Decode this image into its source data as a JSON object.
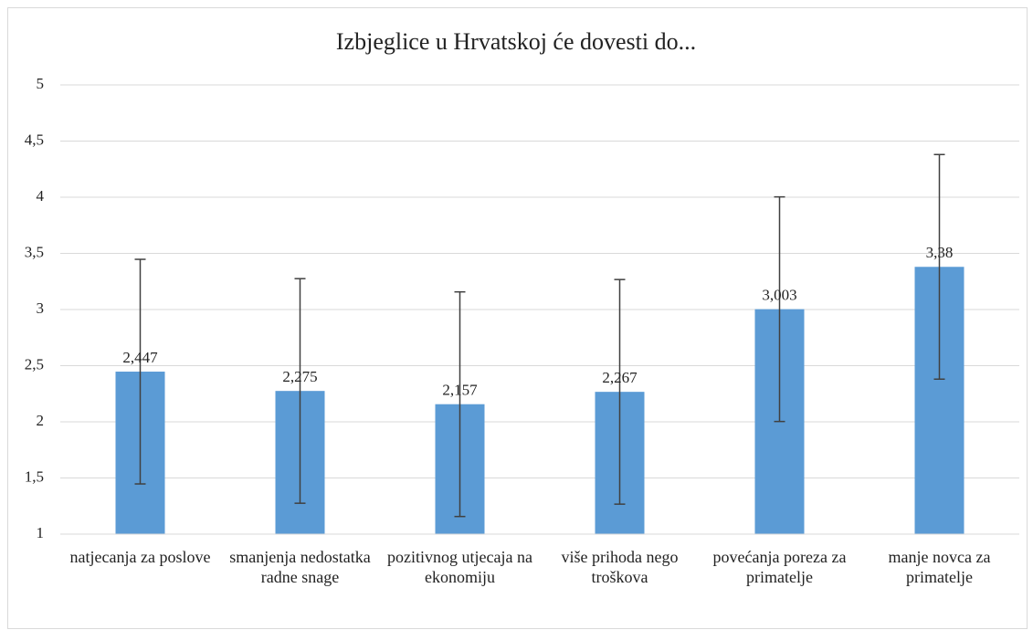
{
  "chart_data": {
    "type": "bar",
    "title": "Izbjeglice u Hrvatskoj će dovesti do...",
    "categories": [
      "natjecanja za poslove",
      "smanjenja nedostatka radne snage",
      "pozitivnog utjecaja na ekonomiju",
      "više prihoda nego troškova",
      "povećanja poreza za primatelje",
      "manje novca za primatelje"
    ],
    "values": [
      2.447,
      2.275,
      2.157,
      2.267,
      3.003,
      3.38
    ],
    "value_labels": [
      "2,447",
      "2,275",
      "2,157",
      "2,267",
      "3,003",
      "3,38"
    ],
    "errors": [
      1.0,
      1.0,
      1.0,
      1.0,
      1.0,
      1.0
    ],
    "color": "#5b9bd5",
    "ylim": [
      1,
      5
    ],
    "yticks": [
      1,
      {
        "value": 1.5,
        "label": "1,5"
      },
      2,
      {
        "value": 2.5,
        "label": "2,5"
      },
      3,
      {
        "value": 3.5,
        "label": "3,5"
      },
      4,
      {
        "value": 4.5,
        "label": "4,5"
      },
      5
    ],
    "grid": true
  }
}
